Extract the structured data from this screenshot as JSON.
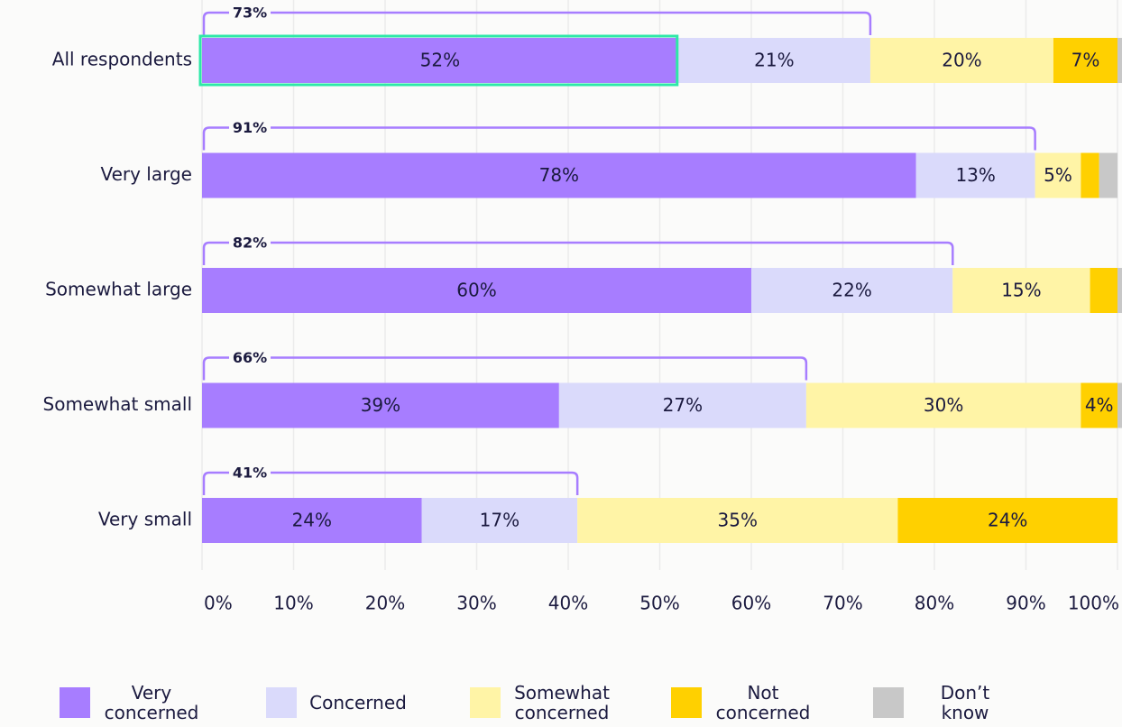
{
  "chart_data": {
    "type": "stacked-barh",
    "categories": [
      "All respondents",
      "Very large",
      "Somewhat large",
      "Somewhat small",
      "Very small"
    ],
    "series": [
      {
        "name": "Very concerned",
        "color": "#a77dff",
        "values": [
          52,
          78,
          60,
          39,
          24
        ],
        "value_labels": [
          "52%",
          "78%",
          "60%",
          "39%",
          "24%"
        ]
      },
      {
        "name": "Concerned",
        "color": "#dadafb",
        "values": [
          21,
          13,
          22,
          27,
          17
        ],
        "value_labels": [
          "21%",
          "13%",
          "22%",
          "27%",
          "17%"
        ]
      },
      {
        "name": "Somewhat concerned",
        "color": "#fff4a6",
        "values": [
          20,
          5,
          15,
          30,
          35
        ],
        "value_labels": [
          "20%",
          "5%",
          "15%",
          "30%",
          "35%"
        ]
      },
      {
        "name": "Not concerned",
        "color": "#ffd000",
        "values": [
          7,
          2,
          3,
          4,
          24
        ],
        "value_labels": [
          "7%",
          null,
          null,
          "4%",
          "24%"
        ]
      },
      {
        "name": "Don’t know",
        "color": "#c8c8c8",
        "values": [
          1,
          2,
          1,
          1,
          0
        ],
        "value_labels": [
          null,
          null,
          null,
          null,
          null
        ]
      }
    ],
    "totals": {
      "values": [
        73,
        91,
        82,
        66,
        41
      ],
      "value_labels": [
        "73%",
        "91%",
        "82%",
        "66%",
        "41%"
      ]
    },
    "xlim": [
      0,
      100
    ],
    "xticks": [
      {
        "value": 0,
        "label": "0%"
      },
      {
        "value": 10,
        "label": "10%"
      },
      {
        "value": 20,
        "label": "20%"
      },
      {
        "value": 30,
        "label": "30%"
      },
      {
        "value": 40,
        "label": "40%"
      },
      {
        "value": 50,
        "label": "50%"
      },
      {
        "value": 60,
        "label": "60%"
      },
      {
        "value": 70,
        "label": "70%"
      },
      {
        "value": 80,
        "label": "80%"
      },
      {
        "value": 90,
        "label": "90%"
      },
      {
        "value": 100,
        "label": "100%"
      }
    ],
    "grid": true,
    "highlight": {
      "series": 0,
      "category": 0,
      "color": "#2ee8a8"
    }
  }
}
